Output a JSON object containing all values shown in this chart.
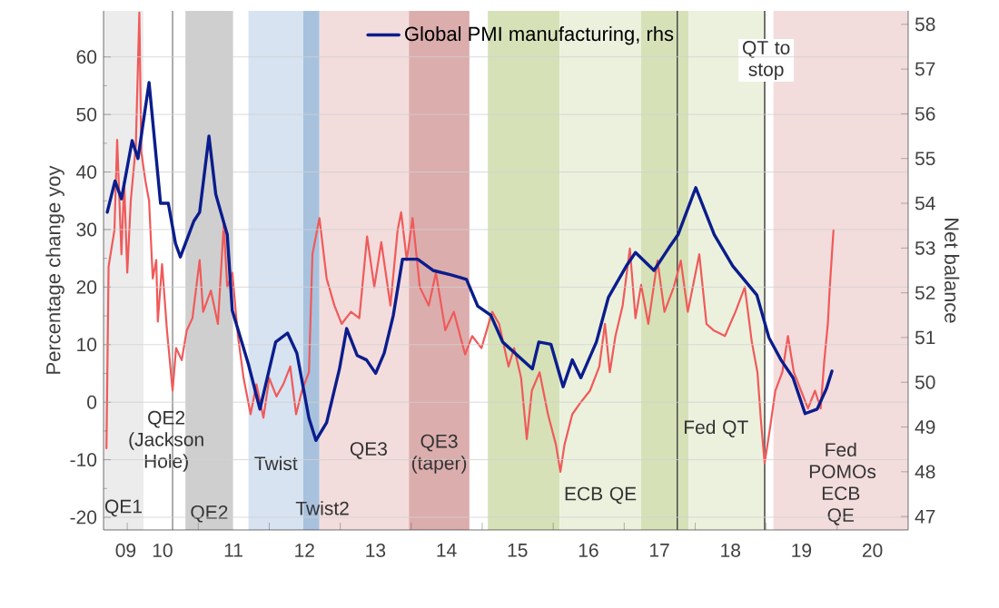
{
  "chart_data": {
    "type": "line",
    "xlim": [
      "2009-09-01",
      "2021-01-01"
    ],
    "xticks": [
      {
        "value": "2009-12-24",
        "label": "09"
      },
      {
        "value": "2010-07-01",
        "label": "10"
      },
      {
        "value": "2011-07-01",
        "label": "11"
      },
      {
        "value": "2012-07-01",
        "label": "12"
      },
      {
        "value": "2013-07-01",
        "label": "13"
      },
      {
        "value": "2014-07-01",
        "label": "14"
      },
      {
        "value": "2015-07-01",
        "label": "15"
      },
      {
        "value": "2016-07-01",
        "label": "16"
      },
      {
        "value": "2017-07-01",
        "label": "17"
      },
      {
        "value": "2018-07-01",
        "label": "18"
      },
      {
        "value": "2019-07-01",
        "label": "19"
      },
      {
        "value": "2020-07-01",
        "label": "20"
      },
      {
        "value": "2010-01-01",
        "label": null
      },
      {
        "value": "2011-01-01",
        "label": null
      },
      {
        "value": "2012-01-01",
        "label": null
      },
      {
        "value": "2013-01-01",
        "label": null
      },
      {
        "value": "2014-01-01",
        "label": null
      },
      {
        "value": "2015-01-01",
        "label": null
      },
      {
        "value": "2016-01-01",
        "label": null
      },
      {
        "value": "2017-01-01",
        "label": null
      },
      {
        "value": "2018-01-01",
        "label": null
      },
      {
        "value": "2019-01-01",
        "label": null
      },
      {
        "value": "2020-01-01",
        "label": null
      }
    ],
    "ylim": [
      -22.2,
      68
    ],
    "yticks": [
      -20,
      -10,
      0,
      10,
      20,
      30,
      40,
      50,
      60
    ],
    "y2lim": [
      46.7,
      58.3
    ],
    "y2ticks": [
      47,
      48,
      49,
      50,
      51,
      52,
      53,
      54,
      55,
      56,
      57,
      58
    ],
    "ylabel": "Percentage change yoy",
    "y2label": "Net balance",
    "grid": "y",
    "legend": "top",
    "line_style": "solid",
    "series": [
      {
        "color": "#f05a5a",
        "x": [
          "2009-09-16",
          "2009-09-27",
          "2009-10-27",
          "2009-11-10",
          "2009-12-02",
          "2009-12-16",
          "2010-01-01",
          "2010-01-19",
          "2010-02-14",
          "2010-03-04",
          "2010-03-14",
          "2010-04-05",
          "2010-04-23",
          "2010-05-12",
          "2010-05-30",
          "2010-06-07",
          "2010-06-29",
          "2010-07-24",
          "2010-08-22",
          "2010-09-09",
          "2010-10-08",
          "2010-11-03",
          "2010-12-02",
          "2011-01-08",
          "2011-01-26",
          "2011-03-07",
          "2011-04-12",
          "2011-05-12",
          "2011-05-30",
          "2011-06-25",
          "2011-07-24",
          "2011-08-22",
          "2011-09-27",
          "2011-10-27",
          "2011-12-02",
          "2012-01-01",
          "2012-02-07",
          "2012-03-14",
          "2012-04-19",
          "2012-05-19",
          "2012-06-18",
          "2012-07-24",
          "2012-08-11",
          "2012-09-16",
          "2012-10-23",
          "2012-12-02",
          "2013-01-08",
          "2013-02-25",
          "2013-04-09",
          "2013-05-19",
          "2013-06-25",
          "2013-07-31",
          "2013-09-16",
          "2013-10-23",
          "2013-11-10",
          "2013-12-09",
          "2014-01-08",
          "2014-02-14",
          "2014-04-01",
          "2014-05-08",
          "2014-06-25",
          "2014-08-08",
          "2014-10-05",
          "2014-11-10",
          "2014-12-28",
          "2015-02-21",
          "2015-03-29",
          "2015-05-16",
          "2015-06-14",
          "2015-07-20",
          "2015-08-18",
          "2015-09-13",
          "2015-10-23",
          "2015-12-05",
          "2016-01-15",
          "2016-02-07",
          "2016-02-28",
          "2016-04-09",
          "2016-05-23",
          "2016-07-09",
          "2016-08-26",
          "2016-09-24",
          "2016-10-19",
          "2016-11-17",
          "2016-12-24",
          "2017-01-30",
          "2017-02-28",
          "2017-03-29",
          "2017-05-05",
          "2017-06-21",
          "2017-07-27",
          "2017-09-13",
          "2017-10-19",
          "2017-11-24",
          "2018-01-22",
          "2018-02-28",
          "2018-04-05",
          "2018-06-03",
          "2018-07-27",
          "2018-09-13",
          "2018-10-19",
          "2018-11-17",
          "2018-12-05",
          "2018-12-24",
          "2019-01-22",
          "2019-02-17",
          "2019-03-25",
          "2019-04-23",
          "2019-05-23",
          "2019-06-29",
          "2019-08-04",
          "2019-09-09",
          "2019-10-08",
          "2019-10-27",
          "2019-11-14",
          "2019-11-24",
          "2019-12-13"
        ],
        "values": [
          -8,
          23.6,
          29.9,
          45.6,
          25.7,
          38.3,
          22.5,
          35,
          44.6,
          67.7,
          43.5,
          38.3,
          35,
          21.5,
          24.7,
          14,
          24,
          12.5,
          2,
          9.4,
          7.3,
          12.5,
          14.6,
          24.7,
          15.7,
          19.4,
          13.6,
          30.9,
          20,
          22.5,
          11.5,
          4.2,
          -2.1,
          3.1,
          -2.7,
          4.2,
          1,
          3.1,
          6.2,
          -2.1,
          2,
          5.2,
          25.7,
          32,
          21.5,
          16.8,
          13.6,
          15.7,
          14.6,
          28.8,
          20,
          27.8,
          16.8,
          29.9,
          33,
          24.7,
          32,
          20,
          16.8,
          22.5,
          12.5,
          15.7,
          8.3,
          11.5,
          9.4,
          15.7,
          13.6,
          6.2,
          9.4,
          4.2,
          -6.4,
          2,
          5.2,
          -2.1,
          -7.4,
          -12.1,
          -7.4,
          -2.1,
          0,
          2,
          6.2,
          13.6,
          5.2,
          11.5,
          16.8,
          26.7,
          14.6,
          20.4,
          13.6,
          24.6,
          15.7,
          20,
          24.6,
          15.7,
          25.7,
          13.6,
          12.5,
          11.5,
          15.7,
          20,
          10.5,
          5.2,
          -3.2,
          -10.6,
          -4.2,
          2,
          5.2,
          11.5,
          5.2,
          2,
          -1.1,
          2,
          -1.1,
          7.3,
          13.6,
          20,
          29.9
        ]
      },
      {
        "name": "Global PMI manufacturing, rhs",
        "color": "#0b1d8c",
        "axis": "y2",
        "x": [
          "2009-09-20",
          "2009-10-30",
          "2009-12-02",
          "2010-01-26",
          "2010-02-25",
          "2010-04-23",
          "2010-06-21",
          "2010-07-31",
          "2010-09-06",
          "2010-10-01",
          "2010-12-09",
          "2011-01-08",
          "2011-02-25",
          "2011-04-01",
          "2011-05-30",
          "2011-06-25",
          "2011-09-16",
          "2011-11-14",
          "2012-02-03",
          "2012-04-05",
          "2012-05-23",
          "2012-07-24",
          "2012-08-29",
          "2012-10-23",
          "2012-12-28",
          "2013-02-03",
          "2013-03-29",
          "2013-05-16",
          "2013-07-02",
          "2013-08-15",
          "2013-10-01",
          "2013-11-17",
          "2014-02-03",
          "2014-04-23",
          "2014-07-24",
          "2014-10-12",
          "2014-12-09",
          "2015-02-14",
          "2015-04-16",
          "2015-09-16",
          "2015-10-19",
          "2015-12-20",
          "2016-02-21",
          "2016-04-09",
          "2016-05-23",
          "2016-08-11",
          "2016-10-12",
          "2017-01-12",
          "2017-02-28",
          "2017-06-03",
          "2017-08-18",
          "2017-10-05",
          "2018-01-04",
          "2018-04-09",
          "2018-07-13",
          "2018-11-14",
          "2019-01-15",
          "2019-03-18",
          "2019-05-19",
          "2019-07-20",
          "2019-09-20",
          "2019-11-06",
          "2019-12-05"
        ],
        "values": [
          53.8,
          54.5,
          54.1,
          55.4,
          55.0,
          56.7,
          54.0,
          54.0,
          53.1,
          52.8,
          53.6,
          53.8,
          55.5,
          54.2,
          53.3,
          51.6,
          50.4,
          49.4,
          50.9,
          51.1,
          50.65,
          49.2,
          48.7,
          49.1,
          50.3,
          51.2,
          50.6,
          50.5,
          50.2,
          50.65,
          51.5,
          52.75,
          52.75,
          52.5,
          52.4,
          52.3,
          51.7,
          51.5,
          50.9,
          50.3,
          50.9,
          50.85,
          49.9,
          50.5,
          50.1,
          50.9,
          51.9,
          52.6,
          52.9,
          52.5,
          53.0,
          53.3,
          54.35,
          53.3,
          52.6,
          51.95,
          51.0,
          50.5,
          50.1,
          49.3,
          49.4,
          49.85,
          50.25
        ]
      }
    ],
    "bands": [
      {
        "axis": "x",
        "from": "2009-09-01",
        "to": "2010-03-25",
        "label": "QE1",
        "color": "#ececec"
      },
      {
        "axis": "x",
        "from": "2010-10-27",
        "to": "2011-06-29",
        "label": "QE2",
        "color": "#cfcfcf"
      },
      {
        "axis": "x",
        "from": "2011-09-16",
        "to": "2012-06-25",
        "label": "Twist",
        "color": "#d7e3f1"
      },
      {
        "axis": "x",
        "from": "2012-06-25",
        "to": "2012-09-16",
        "label": "Twist2",
        "color": "#a8c2de"
      },
      {
        "axis": "x",
        "from": "2012-09-16",
        "to": "2013-12-20",
        "label": "QE3",
        "color": "#f3dcdc"
      },
      {
        "axis": "x",
        "from": "2013-12-20",
        "to": "2014-10-27",
        "label": "QE3 (taper)",
        "color": "#dcadad"
      },
      {
        "axis": "x",
        "from": "2015-01-30",
        "to": "2016-02-03",
        "label": null,
        "color": "#d6e1b8"
      },
      {
        "axis": "x",
        "from": "2016-02-03",
        "to": "2017-03-29",
        "label": "ECB QE",
        "color": "#ecf1de"
      },
      {
        "axis": "x",
        "from": "2017-03-29",
        "to": "2017-11-28",
        "label": null,
        "color": "#d6e1b8"
      },
      {
        "axis": "x",
        "from": "2017-11-28",
        "to": "2018-12-24",
        "label": null,
        "color": "#ecf1de"
      },
      {
        "axis": "x",
        "from": "2019-02-07",
        "to": "2021-01-01",
        "label": "Fed POMOs ECB QE",
        "color": "#f3dcdc"
      }
    ],
    "ref_lines": [
      {
        "axis": "x",
        "value": "2010-08-22",
        "label": "QE2 (Jackson Hole)",
        "color": "#9a9a9a"
      },
      {
        "axis": "x",
        "value": "2017-10-01",
        "label": "Fed QT",
        "color": "#444444"
      },
      {
        "axis": "x",
        "value": "2018-12-24",
        "label": "QT to stop",
        "color": "#444444"
      }
    ]
  }
}
